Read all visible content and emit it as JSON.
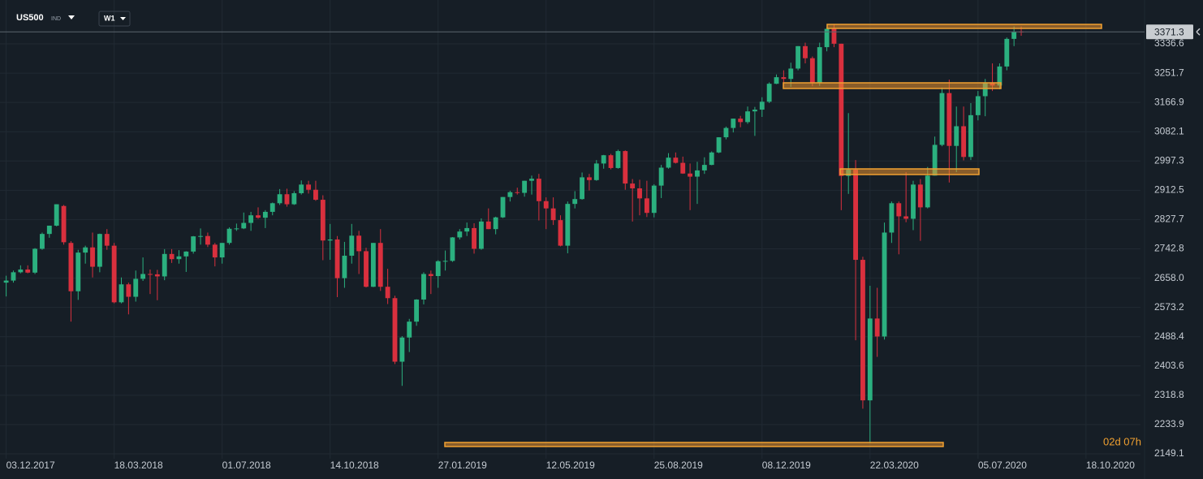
{
  "chart_data": {
    "type": "candlestick",
    "symbol": "US500",
    "market": "IND",
    "timeframe": "W1",
    "countdown": "02d 07h",
    "up_color": "#2bb07f",
    "down_color": "#d9303e",
    "grid": true,
    "ylim": [
      2135,
      3463.6
    ],
    "yticks": [
      3336.6,
      3251.7,
      3166.9,
      3082.1,
      2997.3,
      2912.5,
      2827.7,
      2742.8,
      {
        "value": 2658,
        "label": "2658.0"
      },
      2573.2,
      2488.4,
      2403.6,
      2318.8,
      2233.9,
      2149.1
    ],
    "xlim": [
      "27.11.2017",
      "10.12.2020"
    ],
    "xticks": [
      "03.12.2017",
      "18.03.2018",
      "01.07.2018",
      "14.10.2018",
      "27.01.2019",
      "12.05.2019",
      "25.08.2019",
      "08.12.2019",
      "22.03.2020",
      "05.07.2020",
      "18.10.2020"
    ],
    "x": [
      "03.12.2017",
      "10.12.2017",
      "17.12.2017",
      "24.12.2017",
      "31.12.2017",
      "07.01.2018",
      "14.01.2018",
      "21.01.2018",
      "28.01.2018",
      "04.02.2018",
      "11.02.2018",
      "18.02.2018",
      "25.02.2018",
      "04.03.2018",
      "11.03.2018",
      "18.03.2018",
      "25.03.2018",
      "01.04.2018",
      "08.04.2018",
      "15.04.2018",
      "22.04.2018",
      "29.04.2018",
      "06.05.2018",
      "13.05.2018",
      "20.05.2018",
      "27.05.2018",
      "03.06.2018",
      "10.06.2018",
      "17.06.2018",
      "24.06.2018",
      "01.07.2018",
      "08.07.2018",
      "15.07.2018",
      "22.07.2018",
      "29.07.2018",
      "05.08.2018",
      "12.08.2018",
      "19.08.2018",
      "26.08.2018",
      "02.09.2018",
      "09.09.2018",
      "16.09.2018",
      "23.09.2018",
      "30.09.2018",
      "07.10.2018",
      "14.10.2018",
      "21.10.2018",
      "28.10.2018",
      "04.11.2018",
      "11.11.2018",
      "18.11.2018",
      "25.11.2018",
      "02.12.2018",
      "09.12.2018",
      "16.12.2018",
      "23.12.2018",
      "30.12.2018",
      "06.01.2019",
      "13.01.2019",
      "20.01.2019",
      "27.01.2019",
      "03.02.2019",
      "10.02.2019",
      "17.02.2019",
      "24.02.2019",
      "03.03.2019",
      "10.03.2019",
      "17.03.2019",
      "24.03.2019",
      "31.03.2019",
      "07.04.2019",
      "14.04.2019",
      "21.04.2019",
      "28.04.2019",
      "05.05.2019",
      "12.05.2019",
      "19.05.2019",
      "26.05.2019",
      "02.06.2019",
      "09.06.2019",
      "16.06.2019",
      "23.06.2019",
      "30.06.2019",
      "07.07.2019",
      "14.07.2019",
      "21.07.2019",
      "28.07.2019",
      "04.08.2019",
      "11.08.2019",
      "18.08.2019",
      "25.08.2019",
      "01.09.2019",
      "08.09.2019",
      "15.09.2019",
      "22.09.2019",
      "29.09.2019",
      "06.10.2019",
      "13.10.2019",
      "20.10.2019",
      "27.10.2019",
      "03.11.2019",
      "10.11.2019",
      "17.11.2019",
      "24.11.2019",
      "01.12.2019",
      "08.12.2019",
      "15.12.2019",
      "22.12.2019",
      "29.12.2019",
      "05.01.2020",
      "12.01.2020",
      "19.01.2020",
      "26.01.2020",
      "02.02.2020",
      "09.02.2020",
      "16.02.2020",
      "23.02.2020",
      "01.03.2020",
      "08.03.2020",
      "15.03.2020",
      "22.03.2020",
      "29.03.2020",
      "05.04.2020",
      "12.04.2020",
      "19.04.2020",
      "26.04.2020",
      "03.05.2020",
      "10.05.2020",
      "17.05.2020",
      "24.05.2020",
      "31.05.2020",
      "07.06.2020",
      "14.06.2020",
      "21.06.2020",
      "28.06.2020",
      "05.07.2020",
      "12.07.2020",
      "19.07.2020",
      "26.07.2020",
      "02.08.2020",
      "09.08.2020",
      "16.08.2020"
    ],
    "ohlc": [
      [
        2645,
        2665,
        2605,
        2651
      ],
      [
        2651,
        2680,
        2645,
        2675
      ],
      [
        2675,
        2695,
        2672,
        2683
      ],
      [
        2683,
        2695,
        2672,
        2674
      ],
      [
        2674,
        2745,
        2670,
        2743
      ],
      [
        2743,
        2790,
        2740,
        2786
      ],
      [
        2786,
        2810,
        2775,
        2810
      ],
      [
        2810,
        2872,
        2808,
        2872
      ],
      [
        2867,
        2870,
        2755,
        2762
      ],
      [
        2760,
        2765,
        2532,
        2620
      ],
      [
        2620,
        2740,
        2595,
        2732
      ],
      [
        2732,
        2752,
        2700,
        2747
      ],
      [
        2747,
        2790,
        2660,
        2691
      ],
      [
        2691,
        2787,
        2675,
        2786
      ],
      [
        2786,
        2800,
        2740,
        2752
      ],
      [
        2752,
        2760,
        2585,
        2588
      ],
      [
        2588,
        2660,
        2585,
        2640
      ],
      [
        2640,
        2645,
        2553,
        2604
      ],
      [
        2604,
        2680,
        2590,
        2656
      ],
      [
        2656,
        2718,
        2650,
        2670
      ],
      [
        2670,
        2683,
        2612,
        2669
      ],
      [
        2669,
        2682,
        2594,
        2663
      ],
      [
        2663,
        2742,
        2652,
        2728
      ],
      [
        2728,
        2742,
        2702,
        2713
      ],
      [
        2713,
        2739,
        2700,
        2721
      ],
      [
        2721,
        2736,
        2676,
        2735
      ],
      [
        2735,
        2780,
        2729,
        2779
      ],
      [
        2779,
        2802,
        2755,
        2780
      ],
      [
        2780,
        2790,
        2748,
        2755
      ],
      [
        2755,
        2760,
        2692,
        2718
      ],
      [
        2718,
        2760,
        2700,
        2760
      ],
      [
        2760,
        2805,
        2755,
        2801
      ],
      [
        2801,
        2816,
        2795,
        2802
      ],
      [
        2802,
        2848,
        2800,
        2818
      ],
      [
        2818,
        2850,
        2795,
        2840
      ],
      [
        2840,
        2863,
        2830,
        2833
      ],
      [
        2833,
        2855,
        2803,
        2850
      ],
      [
        2850,
        2877,
        2840,
        2875
      ],
      [
        2875,
        2916,
        2870,
        2901
      ],
      [
        2901,
        2917,
        2865,
        2872
      ],
      [
        2872,
        2910,
        2870,
        2904
      ],
      [
        2904,
        2941,
        2900,
        2929
      ],
      [
        2929,
        2940,
        2903,
        2914
      ],
      [
        2914,
        2940,
        2882,
        2885
      ],
      [
        2885,
        2898,
        2710,
        2767
      ],
      [
        2767,
        2815,
        2711,
        2770
      ],
      [
        2770,
        2780,
        2603,
        2658
      ],
      [
        2658,
        2763,
        2630,
        2723
      ],
      [
        2723,
        2815,
        2700,
        2781
      ],
      [
        2781,
        2795,
        2670,
        2736
      ],
      [
        2736,
        2746,
        2631,
        2633
      ],
      [
        2633,
        2760,
        2632,
        2760
      ],
      [
        2760,
        2800,
        2621,
        2633
      ],
      [
        2633,
        2685,
        2583,
        2600
      ],
      [
        2600,
        2607,
        2409,
        2416
      ],
      [
        2416,
        2490,
        2346,
        2486
      ],
      [
        2486,
        2540,
        2444,
        2532
      ],
      [
        2532,
        2597,
        2520,
        2596
      ],
      [
        2596,
        2675,
        2582,
        2670
      ],
      [
        2670,
        2680,
        2612,
        2664
      ],
      [
        2664,
        2710,
        2630,
        2707
      ],
      [
        2707,
        2738,
        2680,
        2708
      ],
      [
        2708,
        2777,
        2705,
        2776
      ],
      [
        2776,
        2800,
        2770,
        2793
      ],
      [
        2793,
        2819,
        2780,
        2803
      ],
      [
        2803,
        2817,
        2729,
        2743
      ],
      [
        2743,
        2831,
        2740,
        2822
      ],
      [
        2822,
        2860,
        2800,
        2800
      ],
      [
        2800,
        2836,
        2785,
        2834
      ],
      [
        2834,
        2893,
        2832,
        2893
      ],
      [
        2893,
        2911,
        2880,
        2907
      ],
      [
        2907,
        2920,
        2900,
        2905
      ],
      [
        2905,
        2940,
        2894,
        2940
      ],
      [
        2940,
        2955,
        2900,
        2946
      ],
      [
        2946,
        2960,
        2825,
        2881
      ],
      [
        2881,
        2892,
        2800,
        2860
      ],
      [
        2860,
        2892,
        2812,
        2826
      ],
      [
        2826,
        2840,
        2750,
        2752
      ],
      [
        2752,
        2880,
        2730,
        2873
      ],
      [
        2873,
        2910,
        2860,
        2887
      ],
      [
        2887,
        2964,
        2885,
        2950
      ],
      [
        2950,
        2960,
        2912,
        2942
      ],
      [
        2942,
        3000,
        2940,
        2990
      ],
      [
        2990,
        3015,
        2975,
        3014
      ],
      [
        3014,
        3018,
        2973,
        2977
      ],
      [
        2977,
        3030,
        2975,
        3026
      ],
      [
        3026,
        3028,
        2914,
        2932
      ],
      [
        2932,
        2945,
        2822,
        2918
      ],
      [
        2918,
        2943,
        2840,
        2889
      ],
      [
        2889,
        2940,
        2835,
        2847
      ],
      [
        2847,
        2930,
        2834,
        2926
      ],
      [
        2926,
        2986,
        2890,
        2978
      ],
      [
        2978,
        3020,
        2975,
        3007
      ],
      [
        3007,
        3022,
        2990,
        2992
      ],
      [
        2992,
        3010,
        2960,
        2961
      ],
      [
        2961,
        2990,
        2855,
        2952
      ],
      [
        2952,
        2995,
        2873,
        2970
      ],
      [
        2970,
        3008,
        2960,
        2986
      ],
      [
        2986,
        3025,
        2985,
        3022
      ],
      [
        3022,
        3066,
        3020,
        3066
      ],
      [
        3066,
        3097,
        3060,
        3093
      ],
      [
        3093,
        3120,
        3080,
        3120
      ],
      [
        3120,
        3128,
        3095,
        3110
      ],
      [
        3110,
        3155,
        3105,
        3141
      ],
      [
        3141,
        3154,
        3070,
        3146
      ],
      [
        3146,
        3182,
        3125,
        3169
      ],
      [
        3169,
        3225,
        3165,
        3221
      ],
      [
        3221,
        3248,
        3220,
        3240
      ],
      [
        3240,
        3260,
        3212,
        3235
      ],
      [
        3235,
        3282,
        3212,
        3265
      ],
      [
        3265,
        3330,
        3260,
        3330
      ],
      [
        3330,
        3340,
        3280,
        3295
      ],
      [
        3295,
        3300,
        3214,
        3225
      ],
      [
        3225,
        3340,
        3215,
        3327
      ],
      [
        3327,
        3385,
        3315,
        3380
      ],
      [
        3380,
        3393,
        3327,
        3337
      ],
      [
        3337,
        3337,
        2855,
        2954
      ],
      [
        2954,
        3136,
        2902,
        2972
      ],
      [
        2972,
        3000,
        2478,
        2711
      ],
      [
        2711,
        2720,
        2280,
        2304
      ],
      [
        2304,
        2636,
        2180,
        2541
      ],
      [
        2541,
        2630,
        2430,
        2489
      ],
      [
        2489,
        2819,
        2480,
        2790
      ],
      [
        2790,
        2880,
        2760,
        2875
      ],
      [
        2875,
        2880,
        2727,
        2837
      ],
      [
        2837,
        2965,
        2820,
        2830
      ],
      [
        2830,
        2940,
        2797,
        2929
      ],
      [
        2929,
        2945,
        2766,
        2863
      ],
      [
        2863,
        2980,
        2860,
        2955
      ],
      [
        2955,
        3068,
        2955,
        3044
      ],
      [
        3044,
        3210,
        3040,
        3194
      ],
      [
        3194,
        3233,
        2935,
        3041
      ],
      [
        3041,
        3155,
        2965,
        3098
      ],
      [
        3098,
        3155,
        2999,
        3009
      ],
      [
        3009,
        3165,
        3000,
        3130
      ],
      [
        3130,
        3200,
        3115,
        3185
      ],
      [
        3185,
        3235,
        3127,
        3225
      ],
      [
        3225,
        3280,
        3200,
        3216
      ],
      [
        3216,
        3280,
        3205,
        3271
      ],
      [
        3271,
        3355,
        3260,
        3351
      ],
      [
        3351,
        3387,
        3330,
        3372
      ],
      [
        3372,
        3387,
        3360,
        3371.3
      ]
    ]
  }
}
